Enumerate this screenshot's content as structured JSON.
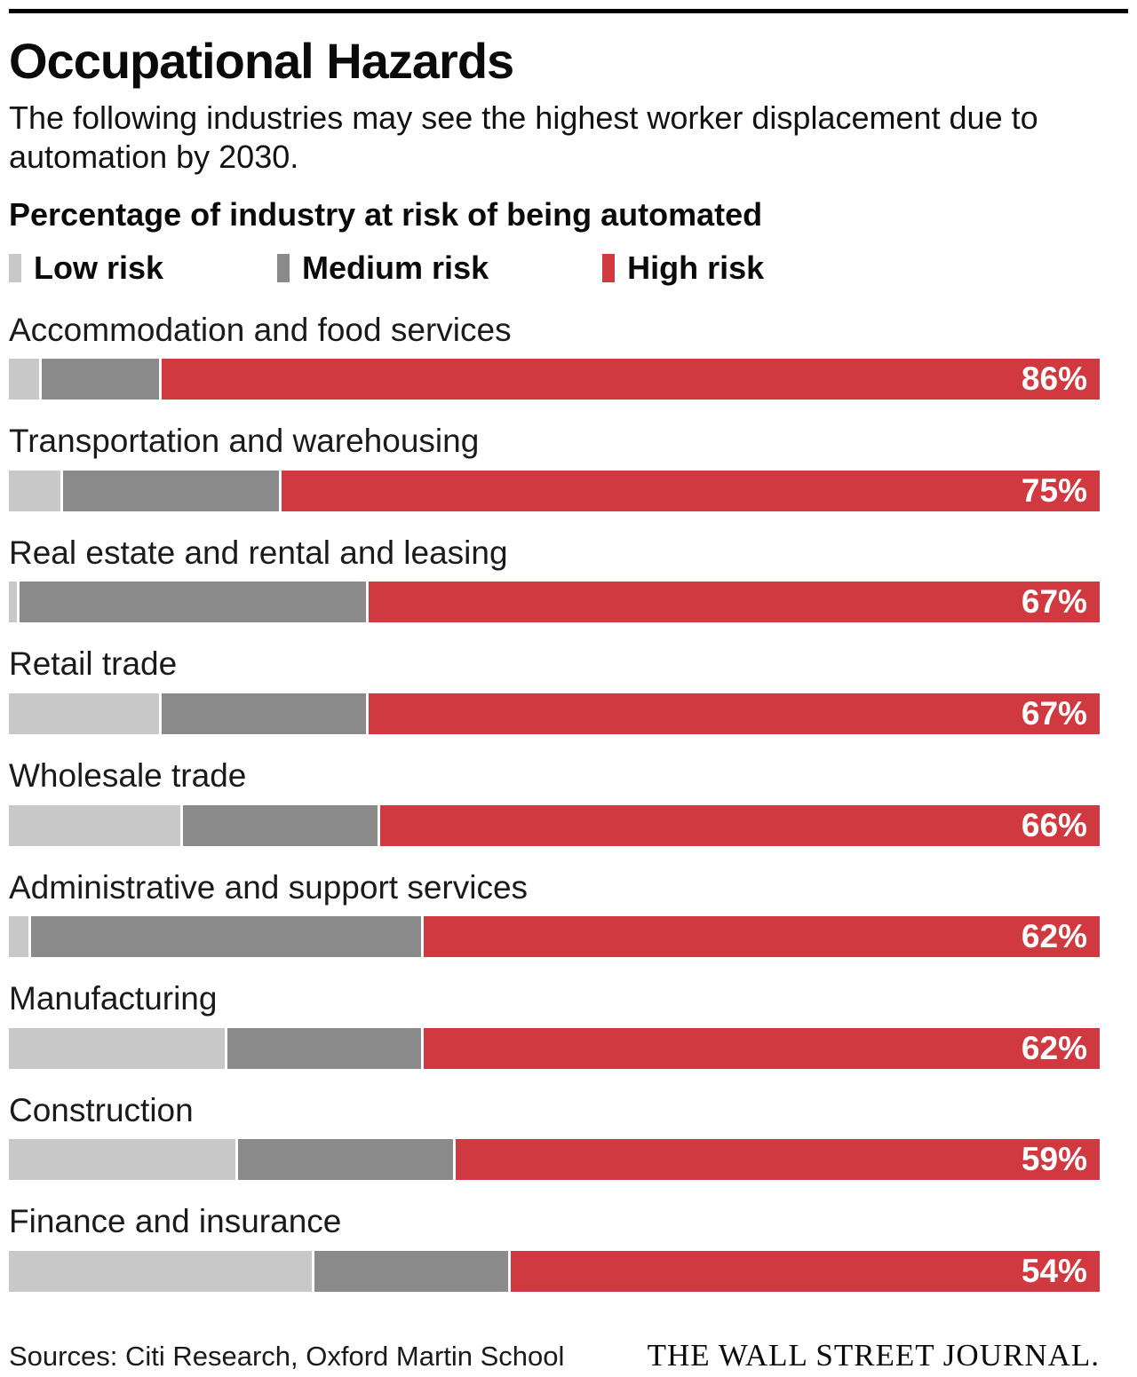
{
  "header": {
    "title": "Occupational Hazards",
    "subtitle": "The following industries may see the highest worker displacement due to automation by 2030.",
    "axis_label": "Percentage of industry at risk of being automated"
  },
  "chart_data": {
    "type": "bar",
    "orientation": "horizontal",
    "stacked": true,
    "x_range": [
      0,
      100
    ],
    "grid": false,
    "title": "Occupational Hazards",
    "subtitle": "The following industries may see the highest worker displacement due to automation by 2030.",
    "xlabel": "Percentage of industry at risk of being automated",
    "legend_position": "top",
    "legend": [
      {
        "label": "Low risk",
        "color": "#c8c8c8"
      },
      {
        "label": "Medium risk",
        "color": "#8a8a8a"
      },
      {
        "label": "High risk",
        "color": "#d13940"
      }
    ],
    "rows": [
      {
        "industry": "Accommodation and food services",
        "low": 3,
        "medium": 11,
        "high": 86,
        "high_label": "86%"
      },
      {
        "industry": "Transportation and warehousing",
        "low": 5,
        "medium": 20,
        "high": 75,
        "high_label": "75%"
      },
      {
        "industry": "Real estate and rental and leasing",
        "low": 1,
        "medium": 32,
        "high": 67,
        "high_label": "67%"
      },
      {
        "industry": "Retail trade",
        "low": 14,
        "medium": 19,
        "high": 67,
        "high_label": "67%"
      },
      {
        "industry": "Wholesale trade",
        "low": 16,
        "medium": 18,
        "high": 66,
        "high_label": "66%"
      },
      {
        "industry": "Administrative and support services",
        "low": 2,
        "medium": 36,
        "high": 62,
        "high_label": "62%"
      },
      {
        "industry": "Manufacturing",
        "low": 20,
        "medium": 18,
        "high": 62,
        "high_label": "62%"
      },
      {
        "industry": "Construction",
        "low": 21,
        "medium": 20,
        "high": 59,
        "high_label": "59%"
      },
      {
        "industry": "Finance and insurance",
        "low": 28,
        "medium": 18,
        "high": 54,
        "high_label": "54%"
      }
    ]
  },
  "footer": {
    "sources": "Sources: Citi Research, Oxford Martin School",
    "brand": "THE WALL STREET JOURNAL."
  }
}
